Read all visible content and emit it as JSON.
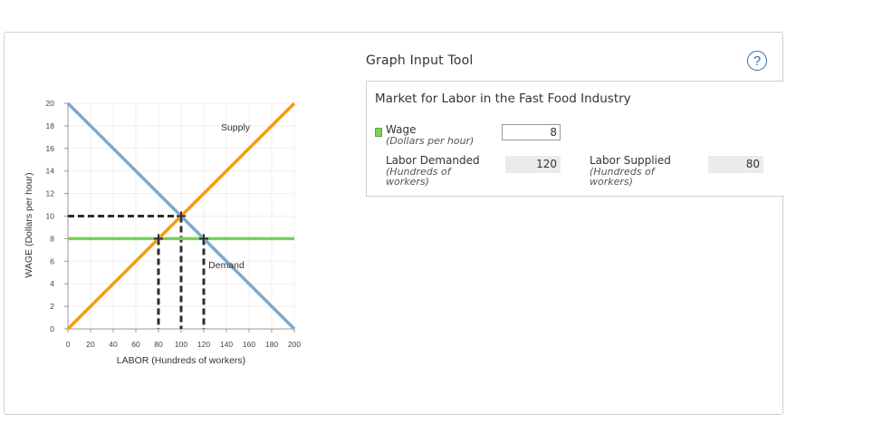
{
  "graph_input_tool": {
    "title": "Graph Input Tool",
    "help_label": "?",
    "panel_title": "Market for Labor in the Fast Food Industry",
    "wage": {
      "label": "Wage",
      "unit": "(Dollars per hour)",
      "value": "8"
    },
    "labor_demanded": {
      "label": "Labor Demanded",
      "unit_line1": "(Hundreds of",
      "unit_line2": "workers)",
      "value": "120"
    },
    "labor_supplied": {
      "label": "Labor Supplied",
      "unit_line1": "(Hundreds of",
      "unit_line2": "workers)",
      "value": "80"
    }
  },
  "chart_data": {
    "type": "line",
    "xlabel": "LABOR (Hundreds of workers)",
    "ylabel": "WAGE (Dollars per hour)",
    "xlim": [
      0,
      200
    ],
    "ylim": [
      0,
      20
    ],
    "xticks": [
      0,
      20,
      40,
      60,
      80,
      100,
      120,
      140,
      160,
      180,
      200
    ],
    "yticks": [
      0,
      2,
      4,
      6,
      8,
      10,
      12,
      14,
      16,
      18,
      20
    ],
    "grid": true,
    "series": [
      {
        "name": "Supply",
        "color": "#f39c12",
        "x": [
          0,
          200
        ],
        "y": [
          0,
          20
        ]
      },
      {
        "name": "Demand",
        "color": "#7fa8cf",
        "x": [
          0,
          200
        ],
        "y": [
          20,
          0
        ]
      },
      {
        "name": "Wage",
        "color": "#7ad05a",
        "x": [
          0,
          200
        ],
        "y": [
          8,
          8
        ]
      }
    ],
    "points": [
      {
        "x": 100,
        "y": 10
      },
      {
        "x": 80,
        "y": 8
      },
      {
        "x": 120,
        "y": 8
      }
    ],
    "curve_labels": [
      {
        "text": "Supply",
        "x": 148,
        "y": 17.6
      },
      {
        "text": "Demand",
        "x": 140,
        "y": 5.4
      }
    ]
  }
}
